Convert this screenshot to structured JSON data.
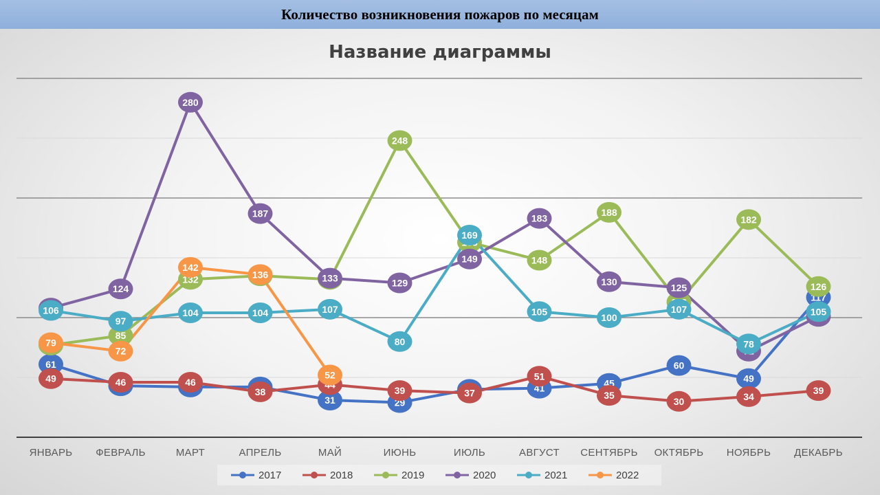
{
  "banner": {
    "title": "Количество возникновения пожаров по месяцам"
  },
  "chart_data": {
    "type": "line",
    "title": "Название диаграммы",
    "xlabel": "",
    "ylabel": "",
    "ylim": [
      0,
      300
    ],
    "grid": true,
    "legend_position": "bottom",
    "categories": [
      "ЯНВАРЬ",
      "ФЕВРАЛЬ",
      "МАРТ",
      "АПРЕЛЬ",
      "МАЙ",
      "ИЮНЬ",
      "ИЮЛЬ",
      "АВГУСТ",
      "СЕНТЯБРЬ",
      "ОКТЯБРЬ",
      "НОЯБРЬ",
      "ДЕКАБРЬ"
    ],
    "series": [
      {
        "name": "2017",
        "color": "#4472c4",
        "values": [
          61,
          43,
          42,
          42,
          31,
          29,
          40,
          41,
          45,
          60,
          49,
          117
        ]
      },
      {
        "name": "2018",
        "color": "#c0504d",
        "values": [
          49,
          46,
          46,
          38,
          44,
          39,
          37,
          51,
          35,
          30,
          34,
          39
        ]
      },
      {
        "name": "2019",
        "color": "#9bbb59",
        "values": [
          77,
          85,
          132,
          135,
          132,
          248,
          163,
          148,
          188,
          113,
          182,
          126
        ]
      },
      {
        "name": "2020",
        "color": "#8064a2",
        "values": [
          108,
          124,
          280,
          187,
          133,
          129,
          149,
          183,
          130,
          125,
          72,
          101
        ]
      },
      {
        "name": "2021",
        "color": "#4bacc6",
        "values": [
          106,
          97,
          104,
          104,
          107,
          80,
          169,
          105,
          100,
          107,
          78,
          105
        ]
      },
      {
        "name": "2022",
        "color": "#f79646",
        "values": [
          79,
          72,
          142,
          136,
          52,
          null,
          null,
          null,
          null,
          null,
          null,
          null
        ]
      }
    ]
  }
}
